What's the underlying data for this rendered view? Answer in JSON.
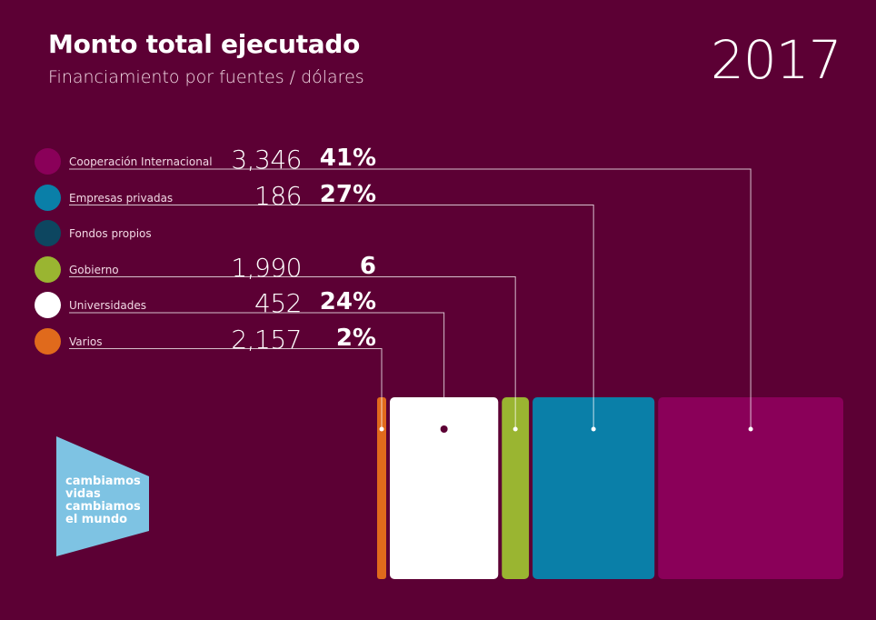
{
  "header": {
    "title": "Monto total ejecutado",
    "subtitle": "Financiamiento por fuentes / dólares",
    "year": "2017"
  },
  "logo": {
    "lines": [
      "cambiamos",
      "vidas",
      "cambiamos",
      "el mundo"
    ]
  },
  "chart_data": {
    "type": "bar",
    "title": "Monto total ejecutado",
    "subtitle": "Financiamiento por fuentes / dólares",
    "categories": [
      "Cooperación Internacional",
      "Empresas privadas",
      "Fondos propios",
      "Gobierno",
      "Universidades",
      "Varios"
    ],
    "legend": [
      {
        "label": "Cooperación Internacional",
        "value": "3,346",
        "percent": "41%",
        "color": "#8a0059"
      },
      {
        "label": "Empresas privadas",
        "value": "186",
        "percent": "27%",
        "color": "#0a7fa8"
      },
      {
        "label": "Fondos propios",
        "value": "",
        "percent": "",
        "color": "#0d4660"
      },
      {
        "label": "Gobierno",
        "value": "1,990",
        "percent": "6",
        "color": "#9ab531"
      },
      {
        "label": "Universidades",
        "value": "452",
        "percent": "24%",
        "color": "#ffffff"
      },
      {
        "label": "Varios",
        "value": "2,157",
        "percent": "2%",
        "color": "#e06a1c"
      }
    ],
    "bars_left_to_right": [
      {
        "category": "Varios",
        "share": 2,
        "color": "#e06a1c"
      },
      {
        "category": "Universidades",
        "share": 24,
        "color": "#ffffff"
      },
      {
        "category": "Gobierno",
        "share": 6,
        "color": "#9ab531"
      },
      {
        "category": "Empresas privadas",
        "share": 27,
        "color": "#0a7fa8"
      },
      {
        "category": "Cooperación Internacional",
        "share": 41,
        "color": "#8a0059"
      }
    ]
  }
}
